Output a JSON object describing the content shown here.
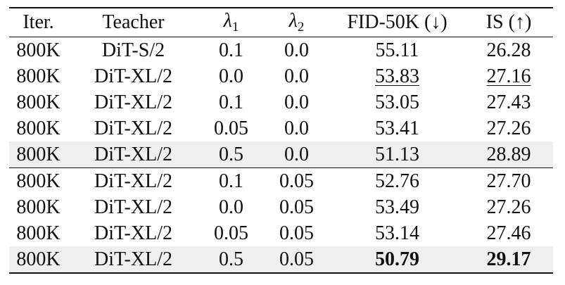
{
  "table": {
    "headers": {
      "iter": "Iter.",
      "teacher": "Teacher",
      "lambda1_symbol": "λ",
      "lambda1_sub": "1",
      "lambda2_symbol": "λ",
      "lambda2_sub": "2",
      "fid": "FID-50K (↓)",
      "is": "IS (↑)"
    },
    "group_a": [
      {
        "iter": "800K",
        "teacher": "DiT-S/2",
        "lambda1": "0.1",
        "lambda2": "0.0",
        "fid": "55.11",
        "is": "26.28"
      },
      {
        "iter": "800K",
        "teacher": "DiT-XL/2",
        "lambda1": "0.0",
        "lambda2": "0.0",
        "fid": "53.83",
        "is": "27.16"
      },
      {
        "iter": "800K",
        "teacher": "DiT-XL/2",
        "lambda1": "0.1",
        "lambda2": "0.0",
        "fid": "53.05",
        "is": "27.43"
      },
      {
        "iter": "800K",
        "teacher": "DiT-XL/2",
        "lambda1": "0.05",
        "lambda2": "0.0",
        "fid": "53.41",
        "is": "27.26"
      },
      {
        "iter": "800K",
        "teacher": "DiT-XL/2",
        "lambda1": "0.5",
        "lambda2": "0.0",
        "fid": "51.13",
        "is": "28.89"
      }
    ],
    "group_b": [
      {
        "iter": "800K",
        "teacher": "DiT-XL/2",
        "lambda1": "0.1",
        "lambda2": "0.05",
        "fid": "52.76",
        "is": "27.70"
      },
      {
        "iter": "800K",
        "teacher": "DiT-XL/2",
        "lambda1": "0.0",
        "lambda2": "0.05",
        "fid": "53.49",
        "is": "27.26"
      },
      {
        "iter": "800K",
        "teacher": "DiT-XL/2",
        "lambda1": "0.05",
        "lambda2": "0.05",
        "fid": "53.14",
        "is": "27.46"
      },
      {
        "iter": "800K",
        "teacher": "DiT-XL/2",
        "lambda1": "0.5",
        "lambda2": "0.05",
        "fid": "50.79",
        "is": "29.17"
      }
    ],
    "highlight_color": "#efefef"
  }
}
